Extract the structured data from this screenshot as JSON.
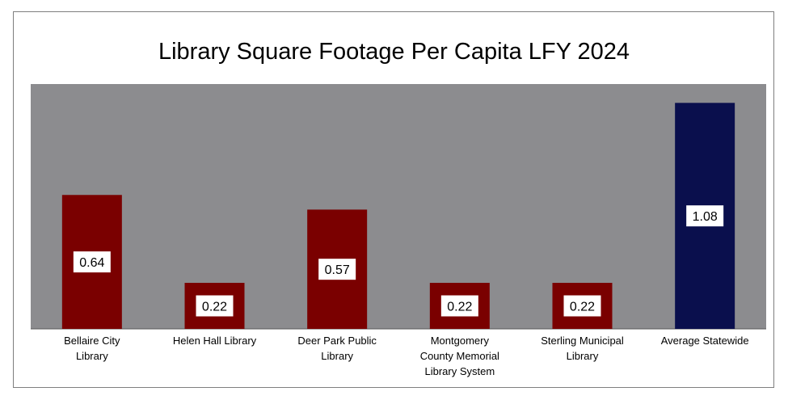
{
  "chart_data": {
    "type": "bar",
    "title": "Library Square Footage Per Capita LFY 2024",
    "categories": [
      [
        "Bellaire City",
        "Library"
      ],
      [
        "Helen Hall Library"
      ],
      [
        "Deer Park Public",
        "Library"
      ],
      [
        "Montgomery",
        "County Memorial",
        "Library System"
      ],
      [
        "Sterling Municipal",
        "Library"
      ],
      [
        "Average Statewide"
      ]
    ],
    "values": [
      0.64,
      0.22,
      0.57,
      0.22,
      0.22,
      1.08
    ],
    "data_labels": [
      "0.64",
      "0.22",
      "0.57",
      "0.22",
      "0.22",
      "1.08"
    ],
    "bar_colors": [
      "#7a0000",
      "#7a0000",
      "#7a0000",
      "#7a0000",
      "#7a0000",
      "#0a0f4d"
    ],
    "plot_background": "#8c8c8f",
    "ylim": [
      0,
      1.17
    ],
    "grid": false,
    "legend": "none",
    "xlabel": "",
    "ylabel": ""
  }
}
